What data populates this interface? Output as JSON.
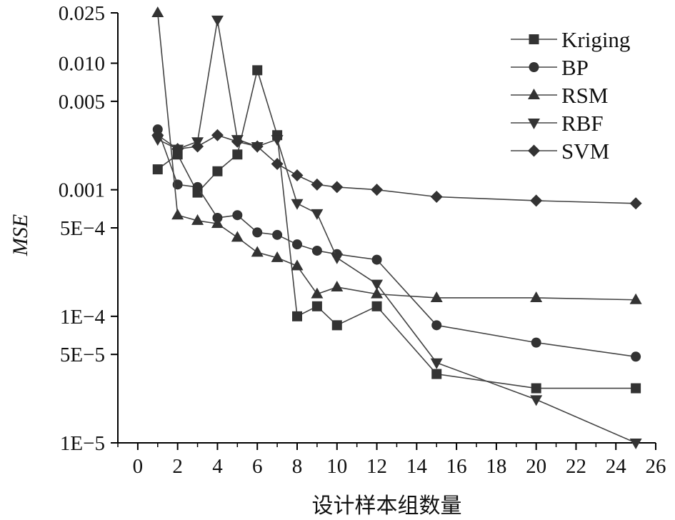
{
  "chart_data": {
    "type": "line",
    "title": "",
    "xlabel": "设计样本组数量",
    "ylabel": "MSE",
    "yscale": "log",
    "xlim": [
      -1,
      26
    ],
    "ylim": [
      1e-05,
      0.025
    ],
    "x_ticks": [
      0,
      2,
      4,
      6,
      8,
      10,
      12,
      14,
      16,
      18,
      20,
      22,
      24,
      26
    ],
    "y_ticks": [
      {
        "value": 0.025,
        "label": "0.025"
      },
      {
        "value": 0.01,
        "label": "0.010"
      },
      {
        "value": 0.005,
        "label": "0.005"
      },
      {
        "value": 0.001,
        "label": "0.001"
      },
      {
        "value": 0.0005,
        "label": "5E−4"
      },
      {
        "value": 0.0001,
        "label": "1E−4"
      },
      {
        "value": 5e-05,
        "label": "5E−5"
      },
      {
        "value": 1e-05,
        "label": "1E−5"
      }
    ],
    "x": [
      1,
      2,
      3,
      4,
      5,
      6,
      7,
      8,
      9,
      10,
      12,
      15,
      20,
      25
    ],
    "legend_position": "top-right",
    "series": [
      {
        "name": "Kriging",
        "marker": "square",
        "values": [
          0.00145,
          0.0019,
          0.00095,
          0.0014,
          0.0019,
          0.0088,
          0.0027,
          0.0001,
          0.00012,
          8.5e-05,
          0.00012,
          3.5e-05,
          2.7e-05,
          2.7e-05
        ]
      },
      {
        "name": "BP",
        "marker": "circle",
        "values": [
          0.003,
          0.0011,
          0.00105,
          0.0006,
          0.00063,
          0.00046,
          0.00044,
          0.00037,
          0.00033,
          0.00031,
          0.00028,
          8.5e-05,
          6.2e-05,
          4.8e-05
        ]
      },
      {
        "name": "RSM",
        "marker": "triangle-up",
        "values": [
          0.025,
          0.00063,
          0.00057,
          0.00054,
          0.00042,
          0.00032,
          0.00029,
          0.00025,
          0.00015,
          0.00017,
          0.00015,
          0.00014,
          0.00014,
          0.000135
        ]
      },
      {
        "name": "RBF",
        "marker": "triangle-down",
        "values": [
          0.0025,
          0.0021,
          0.0024,
          0.022,
          0.0025,
          0.0022,
          0.0025,
          0.00078,
          0.00065,
          0.00029,
          0.00018,
          4.3e-05,
          2.2e-05,
          1e-05
        ]
      },
      {
        "name": "SVM",
        "marker": "diamond",
        "values": [
          0.0027,
          0.0021,
          0.0022,
          0.0027,
          0.0024,
          0.0022,
          0.0016,
          0.0013,
          0.0011,
          0.00105,
          0.001,
          0.00088,
          0.00082,
          0.00078
        ]
      }
    ]
  }
}
